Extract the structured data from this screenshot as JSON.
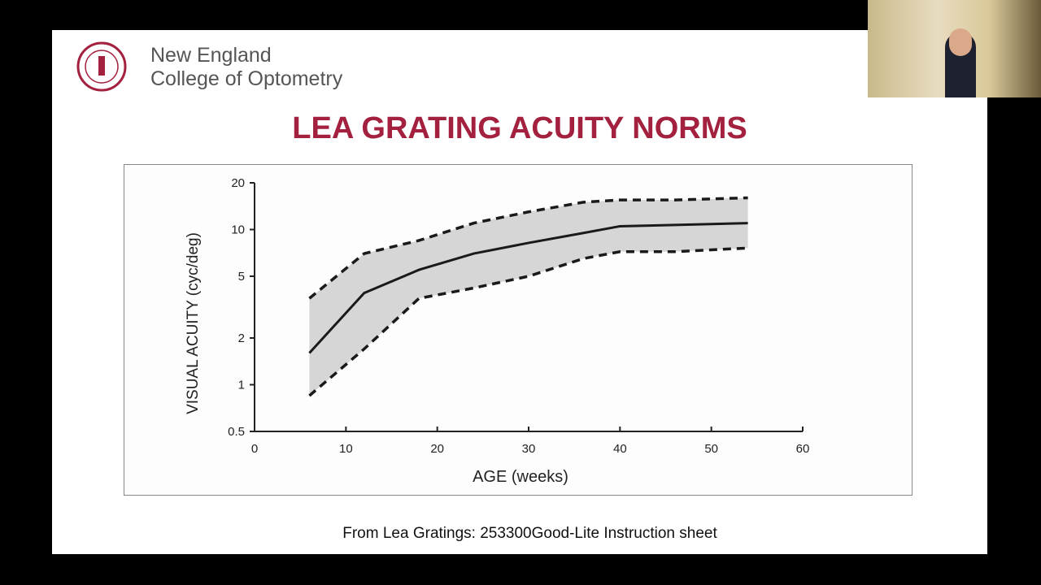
{
  "slide": {
    "logo_lines": [
      "New England",
      "College of Optometry"
    ],
    "title": "LEA GRATING ACUITY NORMS",
    "caption": "From Lea Gratings: 253300Good-Lite Instruction sheet"
  },
  "chart_data": {
    "type": "line",
    "x_label": "AGE  (weeks)",
    "y_label": "VISUAL ACUITY (cyc/deg)",
    "x": [
      6,
      12,
      18,
      24,
      30,
      36,
      40,
      46,
      54
    ],
    "series": [
      {
        "color": "#1a1a1a",
        "dash": false,
        "values": [
          1.6,
          3.9,
          5.5,
          7,
          8.2,
          9.5,
          10.5,
          10.7,
          11
        ]
      },
      {
        "color": "#1a1a1a",
        "dash": true,
        "values": [
          3.6,
          7,
          8.5,
          11,
          13,
          15,
          15.5,
          15.5,
          16
        ]
      },
      {
        "color": "#1a1a1a",
        "dash": true,
        "values": [
          0.85,
          1.7,
          3.6,
          4.2,
          5,
          6.5,
          7.2,
          7.2,
          7.6
        ]
      }
    ],
    "band_color": "#d6d6d6",
    "xlim": [
      0,
      60
    ],
    "xticks": [
      0,
      10,
      20,
      30,
      40,
      50,
      60
    ],
    "ylim": [
      0.5,
      20
    ],
    "yticks": [
      0.5,
      1,
      2,
      5,
      10,
      20
    ],
    "log_y": true
  }
}
